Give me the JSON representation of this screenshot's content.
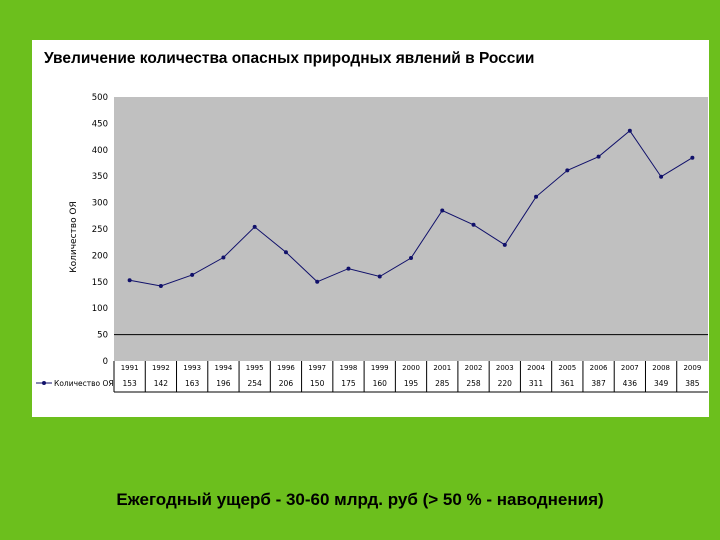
{
  "chart_data": {
    "type": "line",
    "title": "Увеличение количества опасных природных явлений в России",
    "ylabel": "Количество ОЯ",
    "xlabel": "",
    "ylim": [
      0,
      500
    ],
    "yticks": [
      0,
      50,
      100,
      150,
      200,
      250,
      300,
      350,
      400,
      450,
      500
    ],
    "categories": [
      "1991",
      "1992",
      "1993",
      "1994",
      "1995",
      "1996",
      "1997",
      "1998",
      "1999",
      "2000",
      "2001",
      "2002",
      "2003",
      "2004",
      "2005",
      "2006",
      "2007",
      "2008",
      "2009"
    ],
    "series": [
      {
        "name": "Количество ОЯ",
        "values": [
          153,
          142,
          163,
          196,
          254,
          206,
          150,
          175,
          160,
          195,
          285,
          258,
          220,
          311,
          361,
          387,
          436,
          349,
          385
        ],
        "table_labels": [
          "153",
          "142",
          "163",
          "196",
          "254",
          "206",
          "150",
          "175",
          "160",
          "195",
          "285",
          "258",
          "220",
          "311",
          "361",
          "387",
          "436",
          "349",
          "385"
        ]
      }
    ],
    "grid": false,
    "legend": "bottom-left data table",
    "colors": {
      "plot_bg": "#c0c0c0",
      "line": "#10106a",
      "page_bg": "#6cbf1d"
    }
  },
  "caption": "Ежегодный ущерб - 30-60 млрд. руб (> 50 % - наводнения)"
}
